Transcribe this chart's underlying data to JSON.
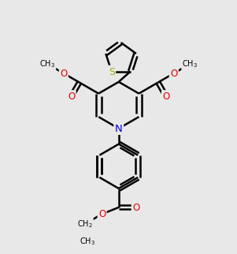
{
  "bg_color": "#e8e8e8",
  "bond_color": "#000000",
  "bond_width": 1.8,
  "atom_colors": {
    "S": "#aaaa00",
    "N": "#0000ee",
    "O": "#ee0000",
    "C": "#000000"
  },
  "font_size_atom": 8.5,
  "font_size_group": 7.0
}
